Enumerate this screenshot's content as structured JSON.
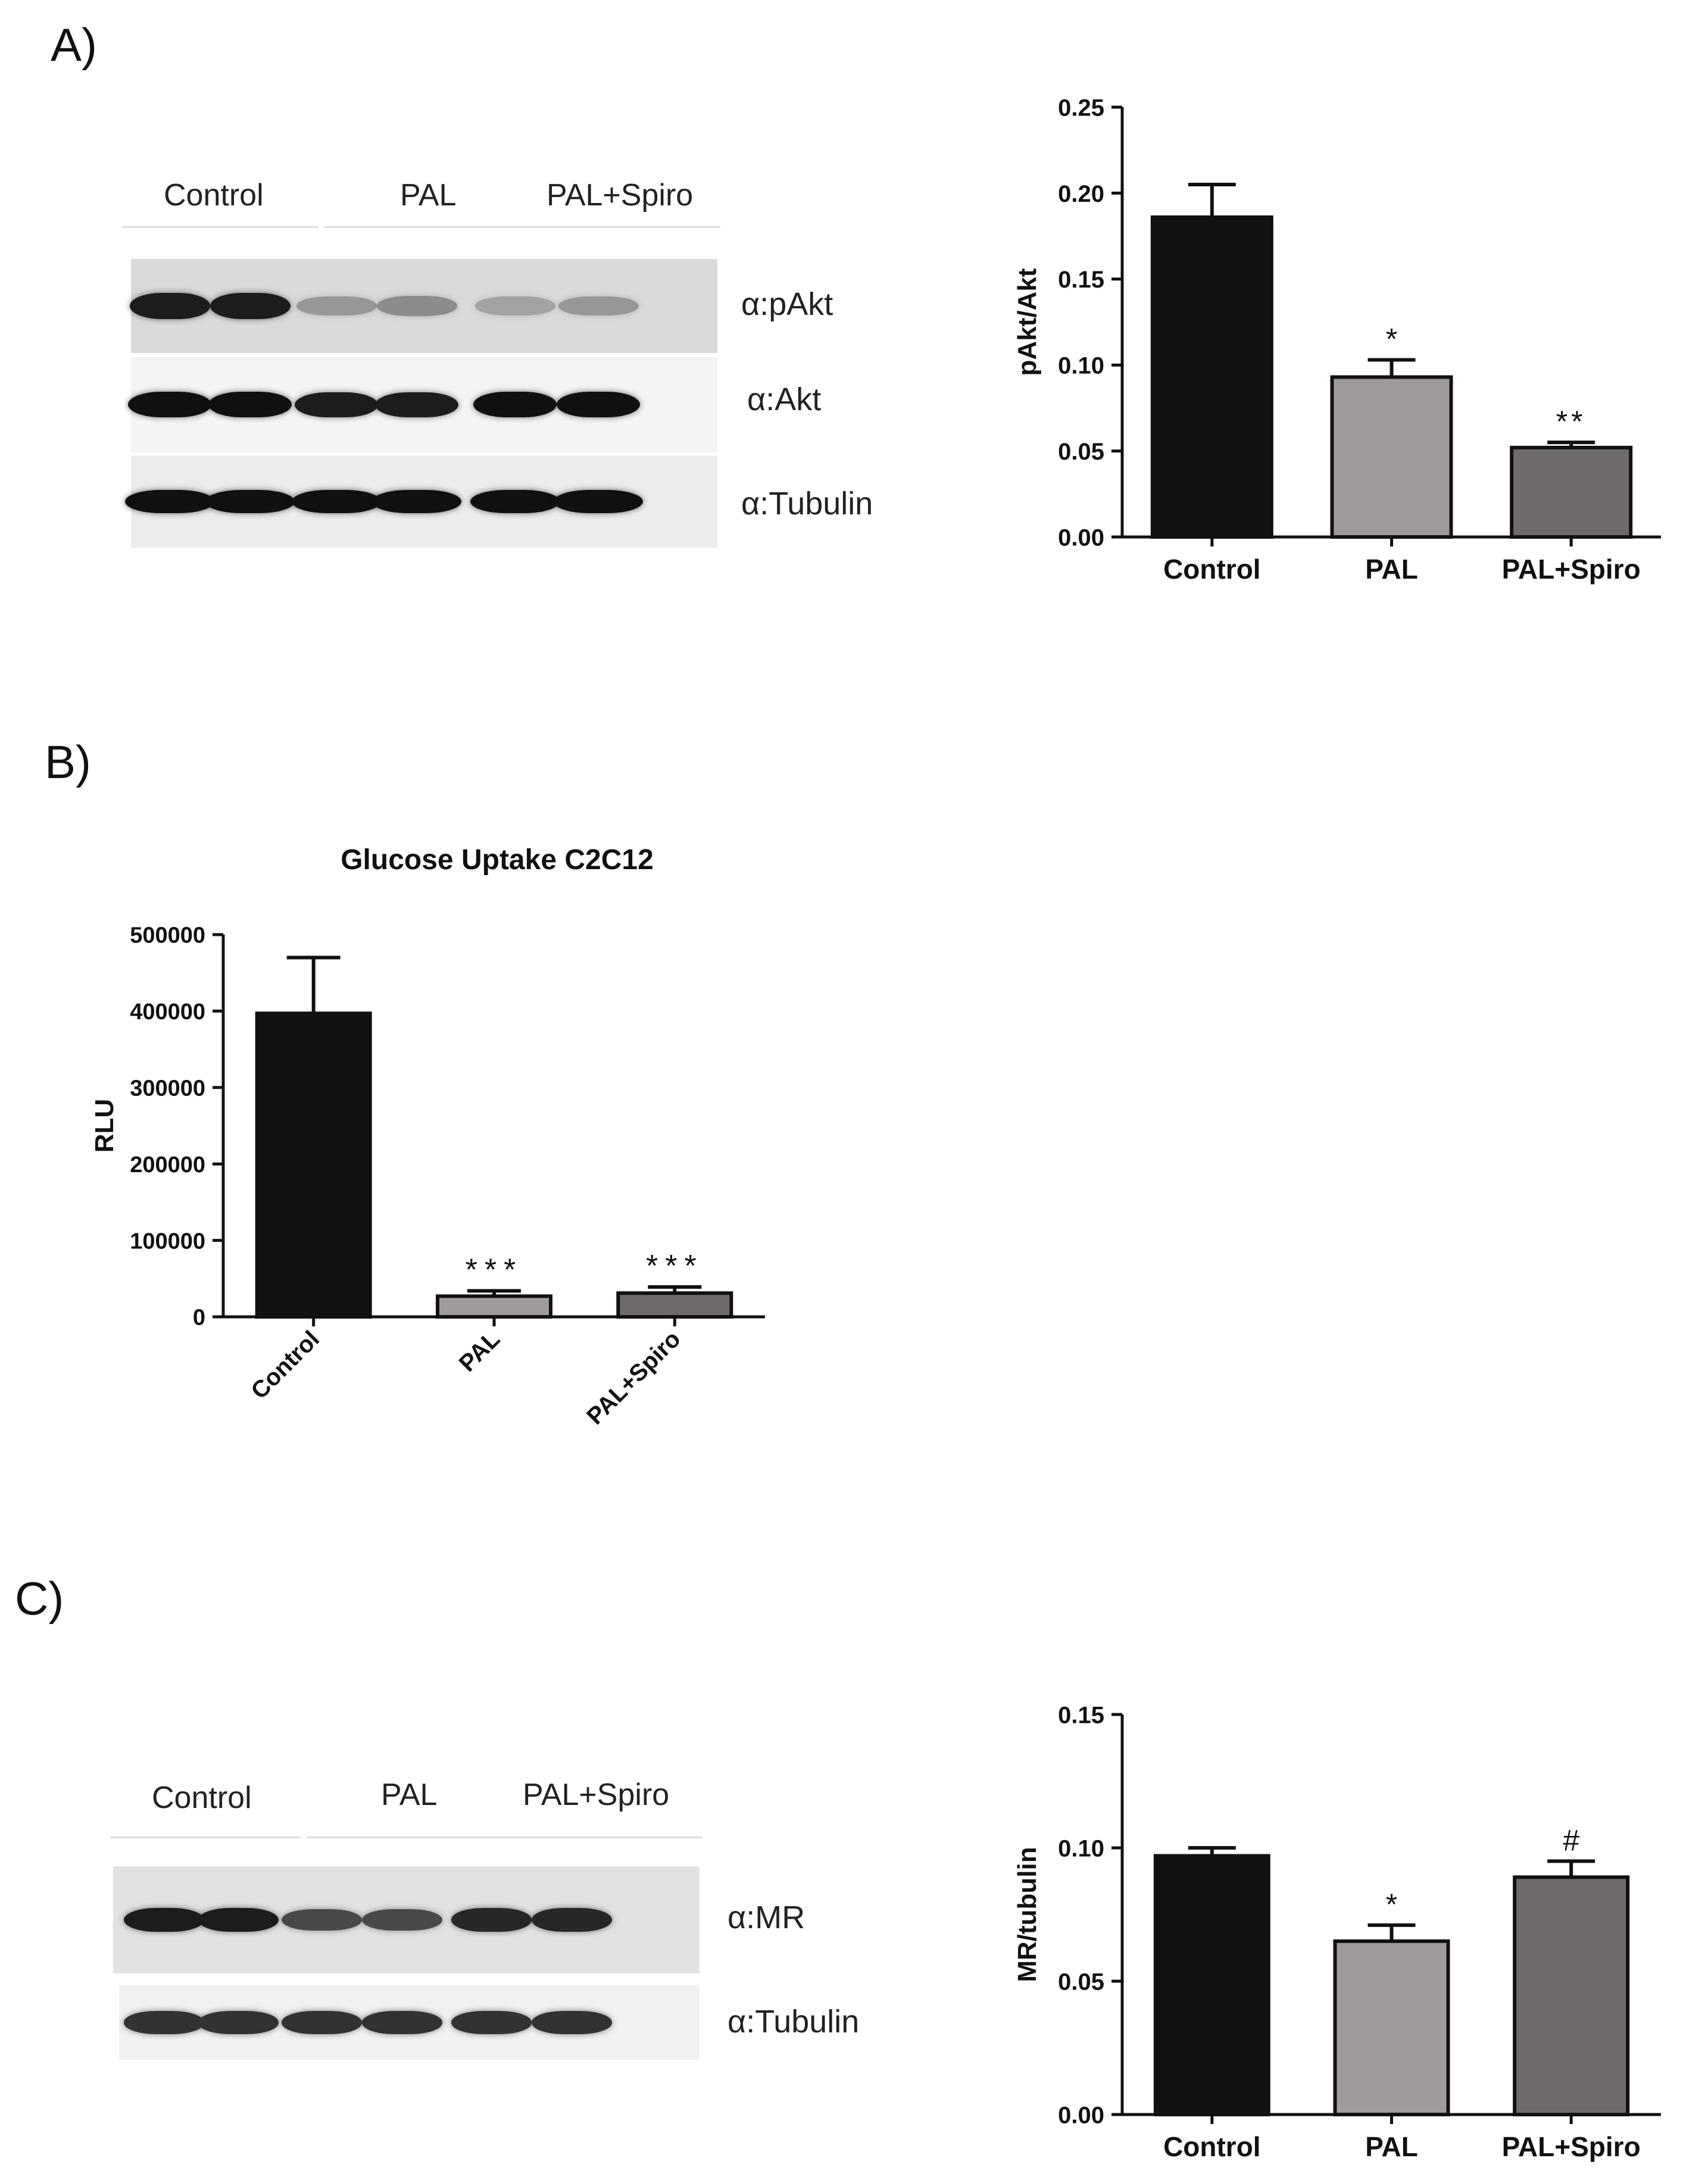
{
  "figure": {
    "panels": [
      {
        "letter": "A)"
      },
      {
        "letter": "B)"
      },
      {
        "letter": "C)"
      }
    ]
  },
  "blot_A": {
    "lane_groups": [
      "Control",
      "PAL",
      "PAL+Spiro"
    ],
    "rows": [
      {
        "label": "α:pAkt",
        "band_intensity": [
          0.9,
          0.9,
          0.35,
          0.4,
          0.3,
          0.35
        ]
      },
      {
        "label": "α:Akt",
        "band_intensity": [
          0.95,
          0.95,
          0.9,
          0.9,
          0.95,
          0.95
        ]
      },
      {
        "label": "α:Tubulin",
        "band_intensity": [
          0.95,
          0.95,
          0.95,
          0.95,
          0.95,
          0.95
        ]
      }
    ]
  },
  "blot_C": {
    "lane_groups": [
      "Control",
      "PAL",
      "PAL+Spiro"
    ],
    "rows": [
      {
        "label": "α:MR",
        "band_intensity": [
          0.9,
          0.9,
          0.7,
          0.7,
          0.85,
          0.85
        ]
      },
      {
        "label": "α:Tubulin",
        "band_intensity": [
          0.8,
          0.8,
          0.8,
          0.8,
          0.8,
          0.8
        ]
      }
    ]
  },
  "chart_data": [
    {
      "type": "bar",
      "title": "",
      "xlabel": "",
      "ylabel": "pAkt/Akt",
      "categories": [
        "Control",
        "PAL",
        "PAL+Spiro"
      ],
      "values": [
        0.186,
        0.093,
        0.052
      ],
      "errors": [
        0.019,
        0.01,
        0.003
      ],
      "annotations": [
        "",
        "*",
        "**"
      ],
      "ylim": [
        0,
        0.25
      ],
      "yticks": [
        "0.00",
        "0.05",
        "0.10",
        "0.15",
        "0.20",
        "0.25"
      ],
      "tick_values": [
        0,
        0.05,
        0.1,
        0.15,
        0.2,
        0.25
      ],
      "colors": [
        "#121212",
        "#a09b9b",
        "#6f6b6b"
      ],
      "rotated_categories": false,
      "grid": false
    },
    {
      "type": "bar",
      "title": "Glucose Uptake C2C12",
      "xlabel": "",
      "ylabel": "RLU",
      "categories": [
        "Control",
        "PAL",
        "PAL+Spiro"
      ],
      "values": [
        397000,
        27000,
        31000
      ],
      "errors": [
        73000,
        7000,
        8000
      ],
      "annotations": [
        "",
        "***",
        "***"
      ],
      "ylim": [
        0,
        500000
      ],
      "yticks": [
        "0",
        "100000",
        "200000",
        "300000",
        "400000",
        "500000"
      ],
      "tick_values": [
        0,
        100000,
        200000,
        300000,
        400000,
        500000
      ],
      "colors": [
        "#121212",
        "#a09b9b",
        "#6f6b6b"
      ],
      "rotated_categories": true,
      "grid": false
    },
    {
      "type": "bar",
      "title": "",
      "xlabel": "",
      "ylabel": "MR/tubulin",
      "categories": [
        "Control",
        "PAL",
        "PAL+Spiro"
      ],
      "values": [
        0.097,
        0.065,
        0.089
      ],
      "errors": [
        0.003,
        0.006,
        0.006
      ],
      "annotations": [
        "",
        "*",
        "#"
      ],
      "ylim": [
        0,
        0.15
      ],
      "yticks": [
        "0.00",
        "0.05",
        "0.10",
        "0.15"
      ],
      "tick_values": [
        0,
        0.05,
        0.1,
        0.15
      ],
      "colors": [
        "#121212",
        "#a09b9b",
        "#6f6b6b"
      ],
      "rotated_categories": false,
      "grid": false
    }
  ]
}
